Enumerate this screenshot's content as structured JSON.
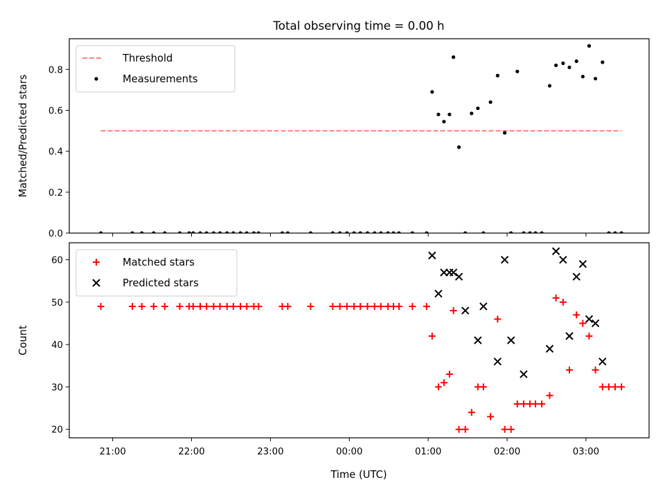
{
  "chart_data": {
    "title": "Total observing time = 0.00 h",
    "xlabel": "Time (UTC)",
    "x_unit": "hours relative to 00:00 UTC (negative = previous day)",
    "xlim": [
      -3.55,
      3.8
    ],
    "xticks": [
      {
        "value": -3,
        "label": "21:00"
      },
      {
        "value": -2,
        "label": "22:00"
      },
      {
        "value": -1,
        "label": "23:00"
      },
      {
        "value": 0,
        "label": "00:00"
      },
      {
        "value": 1,
        "label": "01:00"
      },
      {
        "value": 2,
        "label": "02:00"
      },
      {
        "value": 3,
        "label": "03:00"
      }
    ],
    "x": [
      -3.15,
      -2.75,
      -2.63,
      -2.48,
      -2.34,
      -2.15,
      -2.03,
      -1.98,
      -1.89,
      -1.81,
      -1.72,
      -1.64,
      -1.55,
      -1.47,
      -1.38,
      -1.3,
      -1.21,
      -1.15,
      -0.85,
      -0.78,
      -0.49,
      -0.21,
      -0.12,
      -0.03,
      0.06,
      0.14,
      0.23,
      0.32,
      0.4,
      0.49,
      0.56,
      0.63,
      0.8,
      0.98,
      1.05,
      1.13,
      1.2,
      1.27,
      1.32,
      1.39,
      1.47,
      1.55,
      1.63,
      1.7,
      1.79,
      1.88,
      1.97,
      2.05,
      2.13,
      2.21,
      2.29,
      2.36,
      2.44,
      2.54,
      2.62,
      2.71,
      2.79,
      2.88,
      2.96,
      3.04,
      3.12,
      3.21,
      3.29,
      3.37,
      3.45
    ],
    "subplots": [
      {
        "type": "scatter",
        "ylabel": "Matched/Predicted stars",
        "ylim": [
          0,
          0.95
        ],
        "yticks": [
          {
            "value": 0.0,
            "label": "0.0"
          },
          {
            "value": 0.2,
            "label": "0.2"
          },
          {
            "value": 0.4,
            "label": "0.4"
          },
          {
            "value": 0.6,
            "label": "0.6"
          },
          {
            "value": 0.8,
            "label": "0.8"
          }
        ],
        "legend_position": "top-left",
        "lines": [
          {
            "name": "Threshold",
            "y": 0.5,
            "x_range": [
              -3.15,
              3.45
            ],
            "color": "#ff7f7f",
            "style": "dashed"
          }
        ],
        "series": [
          {
            "name": "Measurements",
            "marker": "dot",
            "color": "#000000",
            "values": [
              0,
              0,
              0,
              0,
              0,
              0,
              0,
              0,
              0,
              0,
              0,
              0,
              0,
              0,
              0,
              0,
              0,
              0,
              0,
              0,
              0,
              0,
              0,
              0,
              0,
              0,
              0,
              0,
              0,
              0,
              0,
              0,
              0,
              0,
              0.69,
              0.58,
              0.545,
              0.58,
              0.86,
              0.42,
              0,
              0.585,
              0.61,
              0,
              0.64,
              0.77,
              0.49,
              0,
              0.79,
              0,
              0,
              0,
              0,
              0.72,
              0.82,
              0.83,
              0.81,
              0.84,
              0.765,
              0.915,
              0.755,
              0.835,
              0,
              0,
              0
            ]
          }
        ]
      },
      {
        "type": "scatter",
        "ylabel": "Count",
        "ylim": [
          18,
          64
        ],
        "yticks": [
          {
            "value": 20,
            "label": "20"
          },
          {
            "value": 30,
            "label": "30"
          },
          {
            "value": 40,
            "label": "40"
          },
          {
            "value": 50,
            "label": "50"
          },
          {
            "value": 60,
            "label": "60"
          }
        ],
        "legend_position": "top-left",
        "series": [
          {
            "name": "Matched stars",
            "marker": "plus",
            "color": "#ff0000",
            "values": [
              49,
              49,
              49,
              49,
              49,
              49,
              49,
              49,
              49,
              49,
              49,
              49,
              49,
              49,
              49,
              49,
              49,
              49,
              49,
              49,
              49,
              49,
              49,
              49,
              49,
              49,
              49,
              49,
              49,
              49,
              49,
              49,
              49,
              49,
              42,
              30,
              31,
              33,
              48,
              20,
              20,
              24,
              30,
              30,
              23,
              46,
              20,
              20,
              26,
              26,
              26,
              26,
              26,
              28,
              51,
              50,
              34,
              47,
              45,
              42,
              34,
              30,
              30,
              30,
              30
            ]
          },
          {
            "name": "Predicted stars",
            "marker": "x",
            "color": "#000000",
            "points": [
              [
                1.05,
                61
              ],
              [
                1.13,
                52
              ],
              [
                1.2,
                57
              ],
              [
                1.27,
                57
              ],
              [
                1.32,
                57
              ],
              [
                1.39,
                56
              ],
              [
                1.47,
                48
              ],
              [
                1.63,
                41
              ],
              [
                1.7,
                49
              ],
              [
                1.88,
                36
              ],
              [
                1.97,
                60
              ],
              [
                2.05,
                41
              ],
              [
                2.21,
                33
              ],
              [
                2.54,
                39
              ],
              [
                2.62,
                62
              ],
              [
                2.71,
                60
              ],
              [
                2.79,
                42
              ],
              [
                2.88,
                56
              ],
              [
                2.96,
                59
              ],
              [
                3.04,
                46
              ],
              [
                3.12,
                45
              ],
              [
                3.21,
                36
              ]
            ]
          }
        ]
      }
    ]
  }
}
